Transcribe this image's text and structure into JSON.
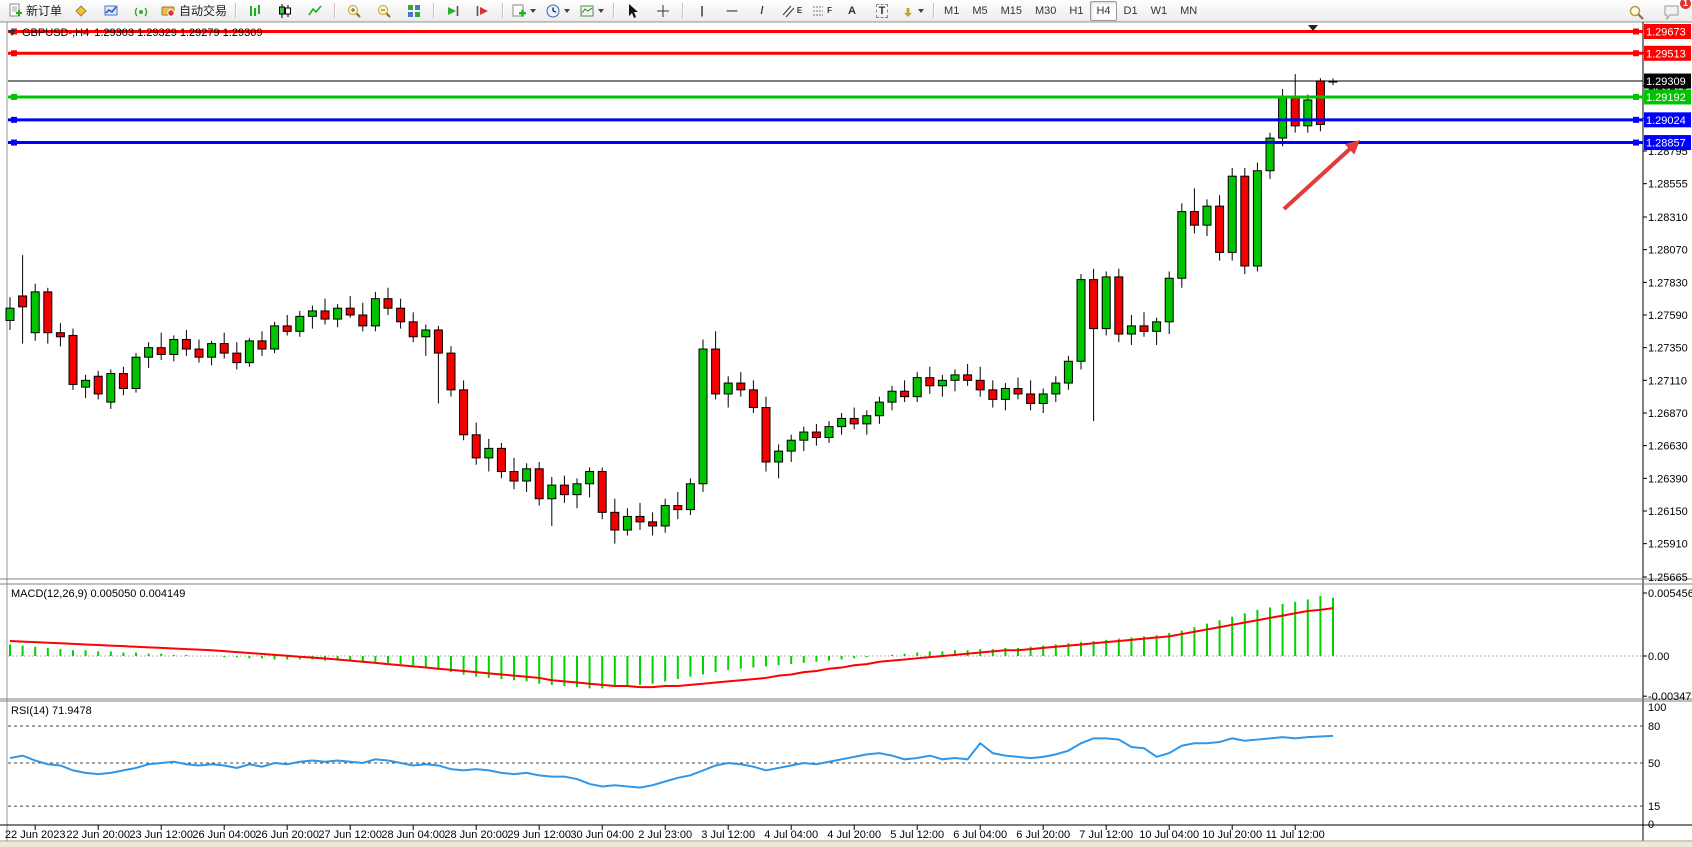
{
  "toolbar": {
    "new_order_label": "新订单",
    "autotrading_label": "自动交易",
    "timeframes": [
      "M1",
      "M5",
      "M15",
      "M30",
      "H1",
      "H4",
      "D1",
      "W1",
      "MN"
    ],
    "active_timeframe": "H4",
    "notification_count": "1",
    "tool_glyphs": {
      "vertical_line": "|",
      "horizontal_line": "—",
      "trendline": "/",
      "channel": "E",
      "fibonacci": "F",
      "text_tool": "A",
      "label_tool": "T"
    }
  },
  "chart": {
    "title_symbol": "GBPUSD-,H4",
    "title_ohlc": "1.29303 1.29329 1.29279 1.29309",
    "price_axis_ticks": [
      "1.29515",
      "1.29275",
      "1.29035",
      "1.28795",
      "1.28555",
      "1.28310",
      "1.28070",
      "1.27830",
      "1.27590",
      "1.27350",
      "1.27110",
      "1.26870",
      "1.26630",
      "1.26390",
      "1.26150",
      "1.25910",
      "1.25665"
    ],
    "lines": [
      {
        "price": "1.29673",
        "color": "#ff0000",
        "width": 3,
        "name": "resistance-line-1",
        "handles": true
      },
      {
        "price": "1.29513",
        "color": "#ff0000",
        "width": 3,
        "name": "resistance-line-2",
        "handles": true
      },
      {
        "price": "1.29309",
        "color": "#000000",
        "width": 1,
        "name": "current-price-line",
        "handles": false,
        "badge_bg": "#000000"
      },
      {
        "price": "1.29192",
        "color": "#00c400",
        "width": 3,
        "name": "support-line-1",
        "handles": true
      },
      {
        "price": "1.29024",
        "color": "#0000ff",
        "width": 3,
        "name": "support-line-2",
        "handles": true
      },
      {
        "price": "1.28857",
        "color": "#0000ff",
        "width": 3,
        "name": "support-line-3",
        "handles": true
      }
    ],
    "colors": {
      "bull": "#00c400",
      "bear": "#f40000",
      "wick": "#000000",
      "macd_hist": "#00d300",
      "macd_signal": "#ff0000",
      "rsi_line": "#2e97ea",
      "arrow": "#e23b3b"
    }
  },
  "chart_data": {
    "type": "candlestick",
    "symbol": "GBPUSD-",
    "timeframe": "H4",
    "current_bar": {
      "open": "1.29303",
      "high": "1.29329",
      "low": "1.29279",
      "close": "1.29309"
    },
    "x_labels": [
      "22 Jun 2023",
      "22 Jun 20:00",
      "23 Jun 12:00",
      "26 Jun 04:00",
      "26 Jun 20:00",
      "27 Jun 12:00",
      "28 Jun 04:00",
      "28 Jun 20:00",
      "29 Jun 12:00",
      "30 Jun 04:00",
      "2 Jul 23:00",
      "3 Jul 12:00",
      "4 Jul 04:00",
      "4 Jul 20:00",
      "5 Jul 12:00",
      "6 Jul 04:00",
      "6 Jul 20:00",
      "7 Jul 12:00",
      "10 Jul 04:00",
      "10 Jul 20:00",
      "11 Jul 12:00"
    ],
    "candles": [
      [
        1.2755,
        1.2772,
        1.2748,
        1.2764
      ],
      [
        1.2773,
        1.2803,
        1.2738,
        1.2765
      ],
      [
        1.2746,
        1.2782,
        1.274,
        1.2776
      ],
      [
        1.2776,
        1.2779,
        1.2738,
        1.2746
      ],
      [
        1.2746,
        1.2753,
        1.2736,
        1.2743
      ],
      [
        1.2744,
        1.2749,
        1.2704,
        1.2708
      ],
      [
        1.2706,
        1.2715,
        1.2698,
        1.2711
      ],
      [
        1.2714,
        1.2718,
        1.2697,
        1.2701
      ],
      [
        1.2695,
        1.2719,
        1.269,
        1.2716
      ],
      [
        1.2716,
        1.2721,
        1.27,
        1.2705
      ],
      [
        1.2705,
        1.2731,
        1.2702,
        1.2728
      ],
      [
        1.2728,
        1.2739,
        1.272,
        1.2735
      ],
      [
        1.2735,
        1.2746,
        1.2726,
        1.273
      ],
      [
        1.273,
        1.2744,
        1.2725,
        1.2741
      ],
      [
        1.2741,
        1.2748,
        1.2729,
        1.2734
      ],
      [
        1.2734,
        1.2741,
        1.2724,
        1.2728
      ],
      [
        1.2728,
        1.274,
        1.2722,
        1.2738
      ],
      [
        1.2738,
        1.2746,
        1.2727,
        1.2731
      ],
      [
        1.2731,
        1.2739,
        1.2719,
        1.2724
      ],
      [
        1.2724,
        1.2742,
        1.2721,
        1.274
      ],
      [
        1.274,
        1.2747,
        1.2729,
        1.2734
      ],
      [
        1.2734,
        1.2754,
        1.2731,
        1.2751
      ],
      [
        1.2751,
        1.2759,
        1.2744,
        1.2747
      ],
      [
        1.2747,
        1.2762,
        1.2743,
        1.2758
      ],
      [
        1.2758,
        1.2766,
        1.2749,
        1.2762
      ],
      [
        1.2762,
        1.2771,
        1.2752,
        1.2756
      ],
      [
        1.2756,
        1.2767,
        1.275,
        1.2764
      ],
      [
        1.2764,
        1.2773,
        1.2757,
        1.2759
      ],
      [
        1.2759,
        1.2768,
        1.2747,
        1.2751
      ],
      [
        1.2751,
        1.2776,
        1.2747,
        1.2771
      ],
      [
        1.2771,
        1.2779,
        1.2759,
        1.2764
      ],
      [
        1.2764,
        1.2771,
        1.2749,
        1.2754
      ],
      [
        1.2754,
        1.2761,
        1.2739,
        1.2743
      ],
      [
        1.2743,
        1.2752,
        1.2729,
        1.2748
      ],
      [
        1.2748,
        1.2751,
        1.2694,
        1.2731
      ],
      [
        1.2731,
        1.2736,
        1.2699,
        1.2704
      ],
      [
        1.2704,
        1.2711,
        1.2667,
        1.2671
      ],
      [
        1.2671,
        1.268,
        1.2649,
        1.2654
      ],
      [
        1.2654,
        1.2668,
        1.2644,
        1.2661
      ],
      [
        1.2661,
        1.2665,
        1.2639,
        1.2644
      ],
      [
        1.2644,
        1.2654,
        1.2631,
        1.2637
      ],
      [
        1.2637,
        1.265,
        1.2629,
        1.2646
      ],
      [
        1.2646,
        1.2651,
        1.2619,
        1.2624
      ],
      [
        1.2624,
        1.264,
        1.2604,
        1.2634
      ],
      [
        1.2634,
        1.2641,
        1.2621,
        1.2627
      ],
      [
        1.2627,
        1.2639,
        1.2617,
        1.2635
      ],
      [
        1.2635,
        1.2647,
        1.2625,
        1.2644
      ],
      [
        1.2644,
        1.2647,
        1.2609,
        1.2614
      ],
      [
        1.2614,
        1.2624,
        1.2591,
        1.2601
      ],
      [
        1.2601,
        1.2617,
        1.2597,
        1.2611
      ],
      [
        1.2611,
        1.2621,
        1.2601,
        1.2607
      ],
      [
        1.2607,
        1.2614,
        1.2597,
        1.2604
      ],
      [
        1.2604,
        1.2624,
        1.2599,
        1.2619
      ],
      [
        1.2619,
        1.2629,
        1.2609,
        1.2616
      ],
      [
        1.2616,
        1.2639,
        1.2612,
        1.2635
      ],
      [
        1.2635,
        1.2741,
        1.2629,
        1.2734
      ],
      [
        1.2734,
        1.2747,
        1.2697,
        1.2701
      ],
      [
        1.2701,
        1.2714,
        1.2691,
        1.2709
      ],
      [
        1.2709,
        1.2717,
        1.2699,
        1.2704
      ],
      [
        1.2704,
        1.2711,
        1.2687,
        1.2691
      ],
      [
        1.2691,
        1.2699,
        1.2644,
        1.2651
      ],
      [
        1.2651,
        1.2664,
        1.2639,
        1.2659
      ],
      [
        1.2659,
        1.2671,
        1.2651,
        1.2667
      ],
      [
        1.2667,
        1.2677,
        1.2659,
        1.2673
      ],
      [
        1.2673,
        1.2679,
        1.2663,
        1.2669
      ],
      [
        1.2669,
        1.2681,
        1.2665,
        1.2677
      ],
      [
        1.2677,
        1.2687,
        1.2671,
        1.2683
      ],
      [
        1.2683,
        1.2691,
        1.2675,
        1.2679
      ],
      [
        1.2679,
        1.2689,
        1.2671,
        1.2685
      ],
      [
        1.2685,
        1.2699,
        1.2679,
        1.2695
      ],
      [
        1.2695,
        1.2707,
        1.2689,
        1.2703
      ],
      [
        1.2703,
        1.2711,
        1.2695,
        1.2699
      ],
      [
        1.2699,
        1.2717,
        1.2695,
        1.2713
      ],
      [
        1.2713,
        1.2721,
        1.2701,
        1.2707
      ],
      [
        1.2707,
        1.2715,
        1.2699,
        1.2711
      ],
      [
        1.2711,
        1.2719,
        1.2703,
        1.2715
      ],
      [
        1.2715,
        1.2723,
        1.2707,
        1.2711
      ],
      [
        1.2711,
        1.2721,
        1.2699,
        1.2704
      ],
      [
        1.2704,
        1.2711,
        1.2691,
        1.2697
      ],
      [
        1.2697,
        1.2709,
        1.2689,
        1.2705
      ],
      [
        1.2705,
        1.2713,
        1.2697,
        1.2701
      ],
      [
        1.2701,
        1.2711,
        1.2689,
        1.2694
      ],
      [
        1.2694,
        1.2705,
        1.2687,
        1.2701
      ],
      [
        1.2701,
        1.2714,
        1.2695,
        1.2709
      ],
      [
        1.2709,
        1.2729,
        1.2704,
        1.2725
      ],
      [
        1.2725,
        1.2789,
        1.2719,
        1.2785
      ],
      [
        1.2785,
        1.2793,
        1.2681,
        1.2749
      ],
      [
        1.2749,
        1.2791,
        1.2744,
        1.2787
      ],
      [
        1.2787,
        1.2793,
        1.2739,
        1.2745
      ],
      [
        1.2745,
        1.2759,
        1.2737,
        1.2751
      ],
      [
        1.2751,
        1.2761,
        1.2743,
        1.2747
      ],
      [
        1.2747,
        1.2757,
        1.2737,
        1.2754
      ],
      [
        1.2754,
        1.2791,
        1.2745,
        1.2786
      ],
      [
        1.2786,
        1.2841,
        1.2779,
        1.2835
      ],
      [
        1.2835,
        1.2852,
        1.2819,
        1.2825
      ],
      [
        1.2825,
        1.2844,
        1.2817,
        1.2839
      ],
      [
        1.2839,
        1.2847,
        1.2799,
        1.2805
      ],
      [
        1.2805,
        1.2867,
        1.2799,
        1.2861
      ],
      [
        1.2861,
        1.2867,
        1.2789,
        1.2795
      ],
      [
        1.2795,
        1.2871,
        1.2791,
        1.2865
      ],
      [
        1.2865,
        1.2893,
        1.2859,
        1.2889
      ],
      [
        1.2889,
        1.2925,
        1.2883,
        1.2919
      ],
      [
        1.2919,
        1.2936,
        1.2893,
        1.2898
      ],
      [
        1.2898,
        1.2921,
        1.2893,
        1.2917
      ],
      [
        1.2931,
        1.2933,
        1.2894,
        1.2899
      ],
      [
        1.29303,
        1.29329,
        1.29279,
        1.29309
      ]
    ],
    "macd": {
      "label": "MACD(12,26,9)",
      "main": "0.005050",
      "signal_value": "0.004149",
      "axis": [
        "0.005456",
        "0.00",
        "-0.003479"
      ],
      "histogram": [
        0.001,
        0.0009,
        0.0008,
        0.0007,
        0.0006,
        0.0005,
        0.0005,
        0.0004,
        0.0004,
        0.0003,
        0.0003,
        0.0002,
        0.0002,
        0.0001,
        0.0001,
        0.0,
        0.0,
        -0.0001,
        -0.0001,
        -0.0002,
        -0.0002,
        -0.0003,
        -0.0003,
        -0.0003,
        -0.0003,
        -0.0004,
        -0.0004,
        -0.0004,
        -0.0005,
        -0.0005,
        -0.0006,
        -0.0007,
        -0.0008,
        -0.001,
        -0.0012,
        -0.0014,
        -0.0016,
        -0.0018,
        -0.0019,
        -0.002,
        -0.0021,
        -0.0022,
        -0.0024,
        -0.0025,
        -0.0026,
        -0.0027,
        -0.0028,
        -0.0028,
        -0.0027,
        -0.0026,
        -0.0025,
        -0.0024,
        -0.0022,
        -0.002,
        -0.0018,
        -0.0016,
        -0.0014,
        -0.0012,
        -0.0011,
        -0.001,
        -0.0009,
        -0.0008,
        -0.0007,
        -0.0006,
        -0.0005,
        -0.0004,
        -0.0003,
        -0.0002,
        -0.0001,
        0.0,
        0.0001,
        0.0002,
        0.0003,
        0.0004,
        0.0004,
        0.0005,
        0.0005,
        0.0006,
        0.0006,
        0.0007,
        0.0007,
        0.0008,
        0.0009,
        0.001,
        0.0011,
        0.0012,
        0.0013,
        0.0014,
        0.0015,
        0.0016,
        0.0017,
        0.0018,
        0.002,
        0.0022,
        0.0025,
        0.0028,
        0.0031,
        0.0034,
        0.0037,
        0.004,
        0.0042,
        0.0045,
        0.0047,
        0.0049,
        0.0052,
        0.00505
      ],
      "signal": [
        0.0013,
        0.00125,
        0.0012,
        0.00115,
        0.0011,
        0.00105,
        0.001,
        0.00095,
        0.0009,
        0.00085,
        0.0008,
        0.00075,
        0.0007,
        0.00065,
        0.0006,
        0.00055,
        0.0005,
        0.00042,
        0.00034,
        0.00026,
        0.00018,
        0.0001,
        2e-05,
        -6e-05,
        -0.00014,
        -0.00022,
        -0.0003,
        -0.0004,
        -0.0005,
        -0.0006,
        -0.0007,
        -0.0008,
        -0.0009,
        -0.001,
        -0.0011,
        -0.0012,
        -0.0013,
        -0.0014,
        -0.0015,
        -0.0016,
        -0.0017,
        -0.0018,
        -0.0019,
        -0.0021,
        -0.0022,
        -0.0023,
        -0.0024,
        -0.0025,
        -0.0026,
        -0.0026,
        -0.0027,
        -0.0027,
        -0.0026,
        -0.0026,
        -0.0025,
        -0.0024,
        -0.0023,
        -0.0022,
        -0.0021,
        -0.002,
        -0.0019,
        -0.0017,
        -0.0016,
        -0.0014,
        -0.0013,
        -0.0011,
        -0.001,
        -0.0008,
        -0.0007,
        -0.0005,
        -0.0004,
        -0.0003,
        -0.0002,
        -0.0001,
        0.0,
        0.0001,
        0.0002,
        0.0003,
        0.0004,
        0.0005,
        0.0005,
        0.0006,
        0.0007,
        0.0008,
        0.0009,
        0.001,
        0.0011,
        0.0012,
        0.0013,
        0.0014,
        0.0015,
        0.0016,
        0.0017,
        0.0019,
        0.0021,
        0.0023,
        0.0025,
        0.0027,
        0.0029,
        0.0031,
        0.0033,
        0.0035,
        0.0037,
        0.0039,
        0.004,
        0.004149
      ]
    },
    "rsi": {
      "label": "RSI(14)",
      "value": "71.9478",
      "levels": [
        "100",
        "80",
        "50",
        "15",
        "0"
      ],
      "dashed_levels": [
        80,
        50,
        15
      ],
      "series": [
        54,
        56,
        52,
        49,
        48,
        44,
        42,
        41,
        42,
        44,
        46,
        49,
        50,
        51,
        49,
        48,
        49,
        48,
        46,
        49,
        47,
        50,
        49,
        51,
        52,
        51,
        52,
        51,
        50,
        53,
        52,
        50,
        48,
        49,
        48,
        45,
        44,
        45,
        44,
        42,
        41,
        42,
        40,
        39,
        39,
        37,
        33,
        31,
        32,
        31,
        30,
        32,
        35,
        38,
        40,
        44,
        48,
        50,
        49,
        47,
        44,
        46,
        48,
        50,
        49,
        51,
        53,
        55,
        57,
        58,
        56,
        53,
        54,
        56,
        53,
        54,
        53,
        66,
        58,
        56,
        55,
        54,
        55,
        57,
        60,
        66,
        70,
        70,
        69,
        63,
        62,
        55,
        58,
        64,
        66,
        66,
        67,
        70,
        68,
        69,
        70,
        71,
        70,
        71,
        71.5,
        71.9478
      ]
    }
  },
  "annotations": {
    "arrow": {
      "description": "red up-right arrow",
      "color": "#e23b3b"
    }
  }
}
